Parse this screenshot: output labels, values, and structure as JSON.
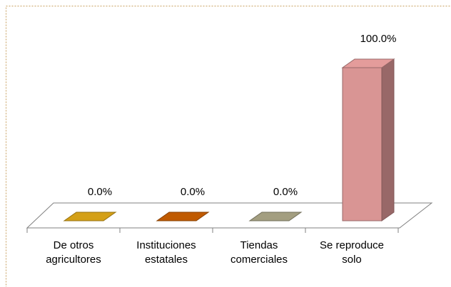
{
  "chart_data": {
    "type": "bar3d",
    "categories": [
      [
        "De otros",
        "agricultores"
      ],
      [
        "Instituciones",
        "estatales"
      ],
      [
        "Tiendas",
        "comerciales"
      ],
      [
        "Se reproduce",
        "solo"
      ]
    ],
    "values": [
      0,
      0,
      0,
      100
    ],
    "value_labels": [
      "0.0%",
      "0.0%",
      "0.0%",
      "100.0%"
    ],
    "colors": [
      "#d4a017",
      "#c05a00",
      "#a39e80",
      "#d99594"
    ]
  }
}
